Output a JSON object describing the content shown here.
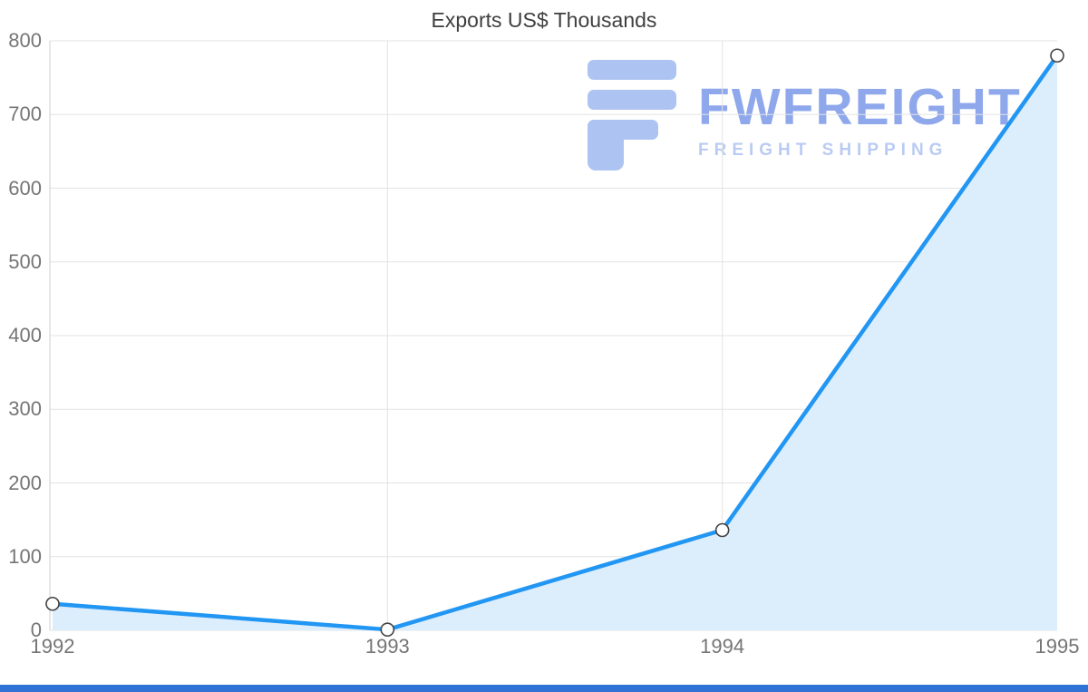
{
  "chart_data": {
    "type": "area",
    "title": "Exports US$ Thousands",
    "x": [
      "1992",
      "1993",
      "1994",
      "1995"
    ],
    "series": [
      {
        "name": "Exports US$ Thousands",
        "values": [
          36,
          1,
          136,
          780
        ]
      }
    ],
    "ylim": [
      0,
      800
    ],
    "yticks": [
      0,
      100,
      200,
      300,
      400,
      500,
      600,
      700,
      800
    ],
    "grid": true,
    "legend": "none",
    "colors": {
      "line": "#2196f3",
      "fill": "#dcedfc",
      "marker_fill": "#ffffff",
      "marker_stroke": "#424242",
      "grid": "#e3e3e3",
      "axis": "#cfcfcf",
      "tick_text": "#757575",
      "title_text": "#3f3f3f"
    }
  },
  "watermark": {
    "brand": "FWFREIGHT",
    "tagline": "FREIGHT SHIPPING",
    "brand_color": "#8aa4ec",
    "tagline_color": "#b7c9f3",
    "icon_color": "#a9c0f2"
  },
  "footer": {
    "bar_color": "#2e72d6"
  }
}
